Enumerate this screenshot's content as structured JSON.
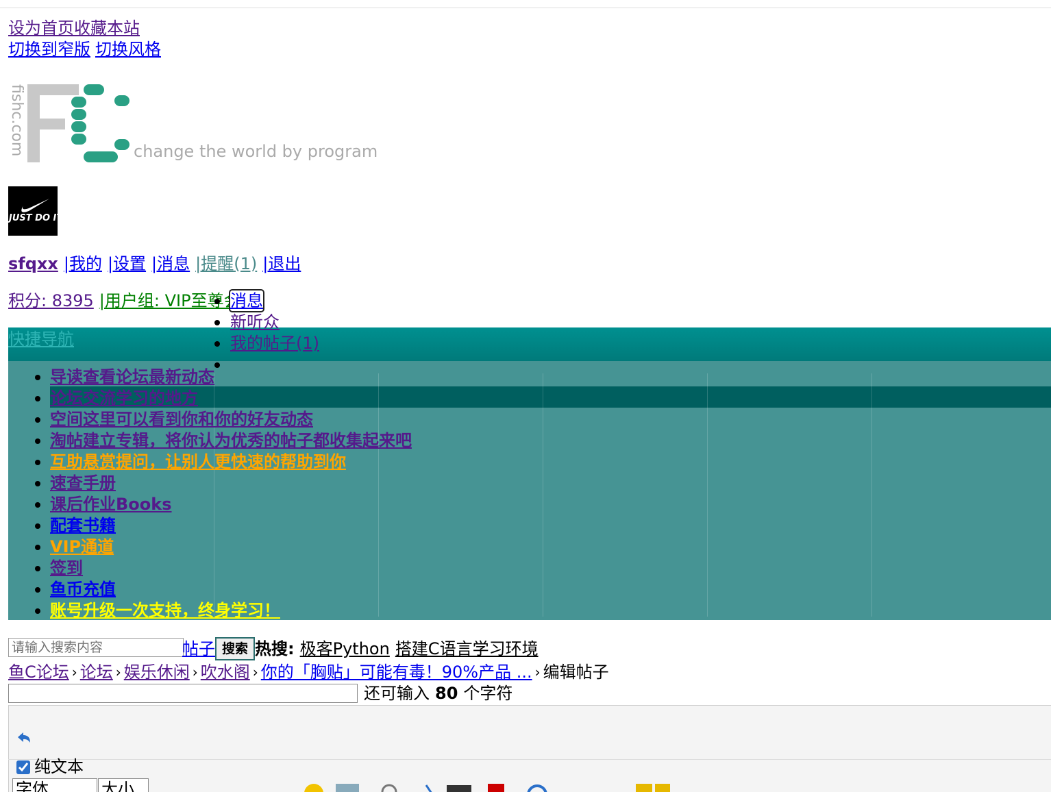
{
  "top_links": [
    "设为首页",
    "收藏本站"
  ],
  "style_links": [
    "切换到窄版",
    "切换风格"
  ],
  "logo": {
    "site": "fishc.com",
    "slogan": "change the world by program"
  },
  "avatar_text": "JUST DO IT",
  "user_menu": [
    "sfqxx",
    "|我的",
    "|设置",
    "|消息",
    "|提醒(1)",
    "|退出"
  ],
  "credits": "积分: 8395",
  "user_group": "|用户组: VIP至尊会员",
  "dropdown": [
    "消息",
    "新听众",
    "我的帖子(1)"
  ],
  "quick_nav": "快捷导航",
  "nav_items": [
    {
      "text": "导读查看论坛最新动态",
      "color": "#551a8b"
    },
    {
      "text": "论坛交流学习的地方",
      "color": "#551a8b"
    },
    {
      "text": "空间这里可以看到你和你的好友动态",
      "color": "#551a8b"
    },
    {
      "text": "淘帖建立专辑，将你认为优秀的帖子都收集起来吧",
      "color": "#551a8b"
    },
    {
      "text": "互助悬赏提问，让别人更快速的帮助到你",
      "color": "#ffa500"
    },
    {
      "text": "速查手册",
      "color": "#551a8b"
    },
    {
      "text": "课后作业Books",
      "color": "#551a8b"
    },
    {
      "text": "配套书籍",
      "color": "#0000ee"
    },
    {
      "text": "VIP通道",
      "color": "#ffa500"
    },
    {
      "text": "签到",
      "color": "#551a8b"
    },
    {
      "text": "鱼币充值",
      "color": "#0000ee"
    },
    {
      "text": "账号升级一次支持，终身学习！",
      "color": "#ffff00"
    }
  ],
  "search": {
    "placeholder": "请输入搜索内容",
    "scope": "帖子",
    "button": "搜索",
    "hot_label": "热搜:",
    "hot": [
      "极客Python",
      "搭建C语言学习环境"
    ]
  },
  "breadcrumb": {
    "separator": "›",
    "items": [
      "鱼C论坛",
      "论坛",
      "娱乐休闲",
      "吹水阁",
      "你的「胸贴」可能有毒！90%产品 ...",
      "编辑帖子"
    ]
  },
  "title_counter": {
    "prefix": "还可输入",
    "count": "80",
    "suffix": "个字符"
  },
  "editor": {
    "mode": "纯文本",
    "font": "字体",
    "size": "大小"
  }
}
